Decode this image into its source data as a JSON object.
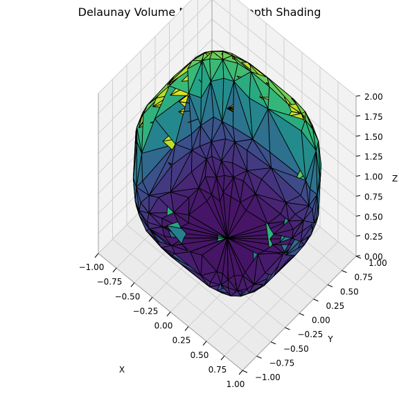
{
  "chart_data": {
    "type": "3d-surface-mesh",
    "title": "Delaunay Volume Mesh with Depth Shading",
    "xlabel": "X",
    "ylabel": "Y",
    "zlabel": "Z",
    "xlim": [
      -1.0,
      1.0
    ],
    "ylim": [
      -1.0,
      1.0
    ],
    "zlim": [
      0.0,
      2.0
    ],
    "x_ticks": [
      "−1.00",
      "−0.75",
      "−0.50",
      "−0.25",
      "0.00",
      "0.25",
      "0.50",
      "0.75",
      "1.00"
    ],
    "y_ticks": [
      "−1.00",
      "−0.75",
      "−0.50",
      "−0.25",
      "0.00",
      "0.25",
      "0.50",
      "0.75",
      "1.00"
    ],
    "z_ticks": [
      "0.00",
      "0.25",
      "0.50",
      "0.75",
      "1.00",
      "1.25",
      "1.50",
      "1.75",
      "2.00"
    ],
    "colormap": "viridis",
    "color_by": "z",
    "edge_color": "#000000",
    "grid": true,
    "pane_color": "#f2f2f2"
  }
}
